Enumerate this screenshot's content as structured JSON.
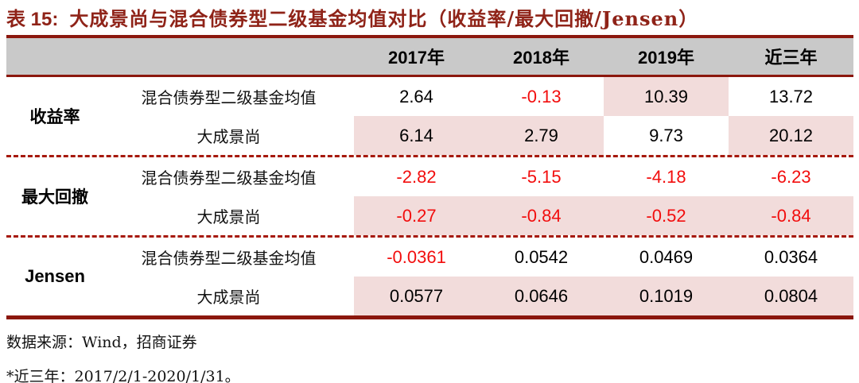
{
  "title": {
    "prefix": "表 15:",
    "text": "大成景尚与混合债券型二级基金均值对比（收益率/最大回撤/Jensen）"
  },
  "table": {
    "columns": [
      "2017年",
      "2018年",
      "2019年",
      "近三年"
    ],
    "groups": [
      {
        "metric": "收益率",
        "rows": [
          {
            "label": "混合债券型二级基金均值",
            "values": [
              "2.64",
              "-0.13",
              "10.39",
              "13.72"
            ]
          },
          {
            "label": "大成景尚",
            "values": [
              "6.14",
              "2.79",
              "9.73",
              "20.12"
            ]
          }
        ]
      },
      {
        "metric": "最大回撤",
        "rows": [
          {
            "label": "混合债券型二级基金均值",
            "values": [
              "-2.82",
              "-5.15",
              "-4.18",
              "-6.23"
            ]
          },
          {
            "label": "大成景尚",
            "values": [
              "-0.27",
              "-0.84",
              "-0.52",
              "-0.84"
            ]
          }
        ]
      },
      {
        "metric": "Jensen",
        "rows": [
          {
            "label": "混合债券型二级基金均值",
            "values": [
              "-0.0361",
              "0.0542",
              "0.0469",
              "0.0364"
            ]
          },
          {
            "label": "大成景尚",
            "values": [
              "0.0577",
              "0.0646",
              "0.1019",
              "0.0804"
            ]
          }
        ]
      }
    ]
  },
  "footer": {
    "source": "数据来源：Wind，招商证券",
    "note": "*近三年：2017/2/1-2020/1/31。"
  },
  "colors": {
    "accent_maroon": "#8B170D",
    "title_red": "#8F2318",
    "header_gray": "#C9C9C9",
    "highlight_pink": "#F2DCDB",
    "negative_red": "#F20D0D"
  }
}
